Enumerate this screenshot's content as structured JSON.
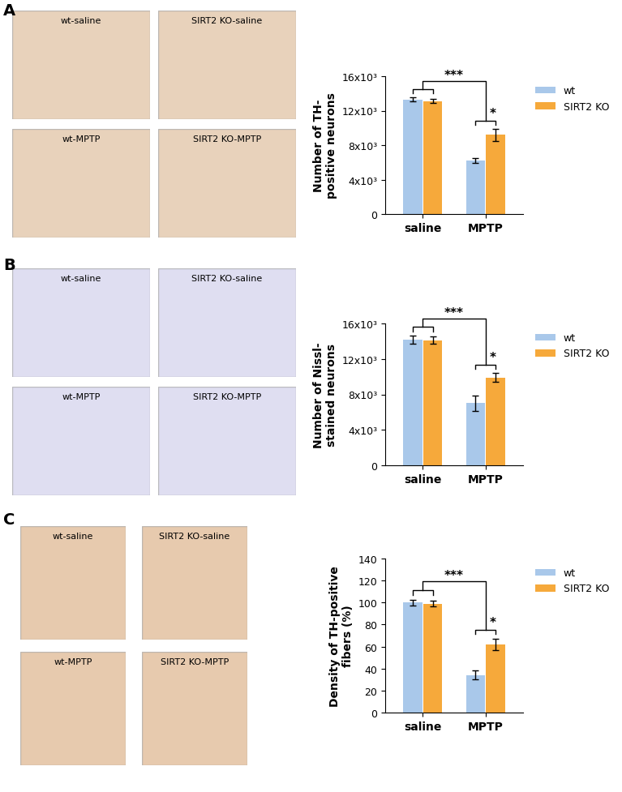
{
  "chart_data": [
    {
      "type": "bar",
      "panel_label": "A",
      "image_labels": [
        "wt-saline",
        "SIRT2 KO-saline",
        "wt-MPTP",
        "SIRT2 KO-MPTP"
      ],
      "y_label": "Number of TH-\npositive neurons",
      "categories": [
        "saline",
        "MPTP"
      ],
      "series": [
        {
          "name": "wt",
          "color": "#a9c8ea",
          "values": [
            13300,
            6200
          ],
          "errors": [
            250,
            300
          ]
        },
        {
          "name": "SIRT2 KO",
          "color": "#f6a93b",
          "values": [
            13100,
            9200
          ],
          "errors": [
            250,
            700
          ]
        }
      ],
      "ylim": [
        0,
        16000
      ],
      "yticks": [
        0,
        {
          "value": 4000,
          "label": "4x10³"
        },
        {
          "value": 8000,
          "label": "8x10³"
        },
        {
          "value": 12000,
          "label": "12x10³"
        },
        {
          "value": 16000,
          "label": "16x10³"
        }
      ],
      "legend": "upper left",
      "annotations": [
        "***",
        "*"
      ]
    },
    {
      "type": "bar",
      "panel_label": "B",
      "image_labels": [
        "wt-saline",
        "SIRT2 KO-saline",
        "wt-MPTP",
        "SIRT2 KO-MPTP"
      ],
      "y_label": "Number of Nissl-\nstained neurons",
      "categories": [
        "saline",
        "MPTP"
      ],
      "series": [
        {
          "name": "wt",
          "color": "#a9c8ea",
          "values": [
            14200,
            7000
          ],
          "errors": [
            450,
            900
          ]
        },
        {
          "name": "SIRT2 KO",
          "color": "#f6a93b",
          "values": [
            14100,
            9900
          ],
          "errors": [
            400,
            500
          ]
        }
      ],
      "ylim": [
        0,
        16000
      ],
      "yticks": [
        0,
        {
          "value": 4000,
          "label": "4x10³"
        },
        {
          "value": 8000,
          "label": "8x10³"
        },
        {
          "value": 12000,
          "label": "12x10³"
        },
        {
          "value": 16000,
          "label": "16x10³"
        }
      ],
      "legend": "upper left",
      "annotations": [
        "***",
        "*"
      ]
    },
    {
      "type": "bar",
      "panel_label": "C",
      "image_labels": [
        "wt-saline",
        "SIRT2 KO-saline",
        "wt-MPTP",
        "SIRT2 KO-MPTP"
      ],
      "y_label": "Density of TH-positive\nfibers (%)",
      "categories": [
        "saline",
        "MPTP"
      ],
      "series": [
        {
          "name": "wt",
          "color": "#a9c8ea",
          "values": [
            100,
            34
          ],
          "errors": [
            2.5,
            4
          ]
        },
        {
          "name": "SIRT2 KO",
          "color": "#f6a93b",
          "values": [
            99,
            62
          ],
          "errors": [
            2.5,
            5
          ]
        }
      ],
      "ylim": [
        0,
        140
      ],
      "yticks": [
        0,
        20,
        40,
        60,
        80,
        100,
        120,
        140
      ],
      "legend": "upper left",
      "annotations": [
        "***",
        "*"
      ]
    }
  ]
}
